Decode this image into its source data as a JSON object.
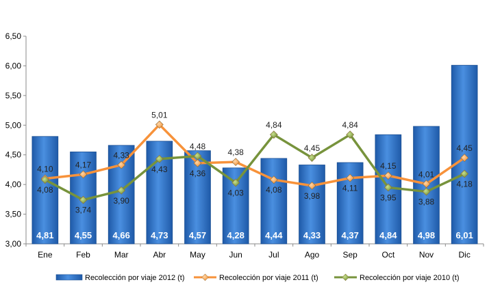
{
  "chart_data": {
    "type": "bar",
    "categories": [
      "Ene",
      "Feb",
      "Mar",
      "Abr",
      "May",
      "Jun",
      "Jul",
      "Ago",
      "Sep",
      "Oct",
      "Nov",
      "Dic"
    ],
    "ylim": [
      3.0,
      6.5
    ],
    "yticks": [
      "3,00",
      "3,50",
      "4,00",
      "4,50",
      "5,00",
      "5,50",
      "6,00",
      "6,50"
    ],
    "ytick_values": [
      3.0,
      3.5,
      4.0,
      4.5,
      5.0,
      5.5,
      6.0,
      6.5
    ],
    "grid": false,
    "legend_position": "bottom",
    "series": [
      {
        "name": "Recolección por viaje 2012 (t)",
        "type": "bar",
        "color": "#2E6FC2",
        "values": [
          4.81,
          4.55,
          4.66,
          4.73,
          4.57,
          4.28,
          4.44,
          4.33,
          4.37,
          4.84,
          4.98,
          6.01
        ],
        "labels": [
          "4,81",
          "4,55",
          "4,66",
          "4,73",
          "4,57",
          "4,28",
          "4,44",
          "4,33",
          "4,37",
          "4,84",
          "4,98",
          "6,01"
        ]
      },
      {
        "name": "Recolección por viaje 2011 (t)",
        "type": "line",
        "color": "#F7923A",
        "values": [
          4.1,
          4.17,
          4.33,
          5.01,
          4.36,
          4.38,
          4.08,
          3.98,
          4.11,
          4.15,
          4.01,
          4.45
        ],
        "labels": [
          "4,10",
          "4,17",
          "4,33",
          "5,01",
          "4,36",
          "4,38",
          "4,08",
          "3,98",
          "4,11",
          "4,15",
          "4,01",
          "4,45"
        ]
      },
      {
        "name": "Recolección por viaje 2010 (t)",
        "type": "line",
        "color": "#77933C",
        "values": [
          4.08,
          3.74,
          3.9,
          4.43,
          4.48,
          4.03,
          4.84,
          4.45,
          4.84,
          3.95,
          3.88,
          4.18
        ],
        "labels": [
          "4,08",
          "3,74",
          "3,90",
          "4,43",
          "4,48",
          "4,03",
          "4,84",
          "4,45",
          "4,84",
          "3,95",
          "3,88",
          "4,18"
        ]
      }
    ]
  }
}
